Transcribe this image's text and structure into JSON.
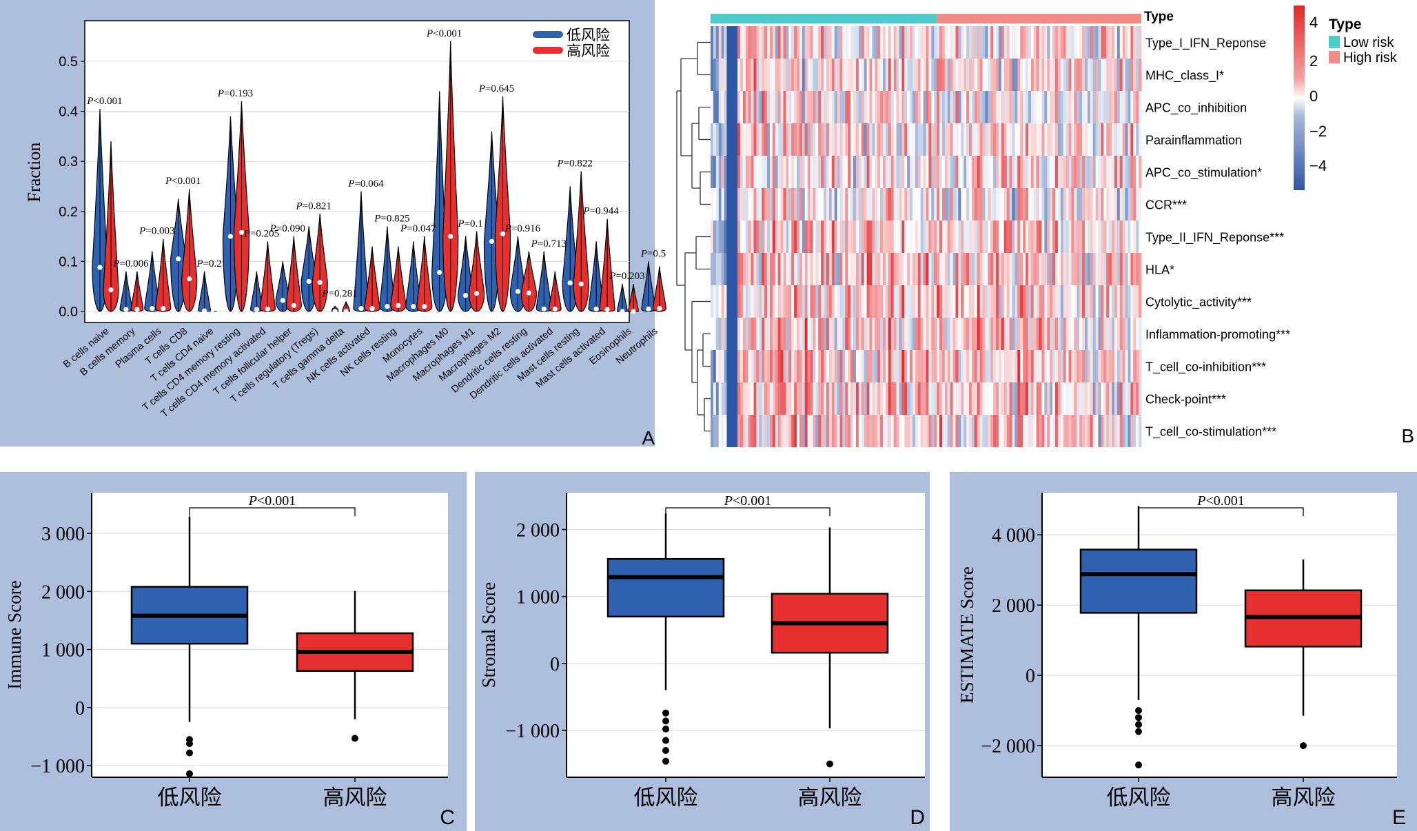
{
  "colors": {
    "panel_bg": "#aebedd",
    "low_risk": "#2e62b1",
    "high_risk": "#e63030",
    "heat_high": "#e2262b",
    "heat_low": "#2d56a6",
    "low_risk_bar": "#4ec9cc",
    "high_risk_bar": "#f28c86",
    "grid": "#d8d8d8"
  },
  "panels": {
    "A": "A",
    "B": "B",
    "C": "C",
    "D": "D",
    "E": "E"
  },
  "chart_data": [
    {
      "panel": "A",
      "type": "violin",
      "ylabel": "Fraction",
      "ylim": [
        0,
        0.58
      ],
      "yticks": [
        0.0,
        0.1,
        0.2,
        0.3,
        0.4,
        0.5
      ],
      "legend": {
        "position": "top-right",
        "entries": [
          "低风险",
          "高风险"
        ]
      },
      "categories": [
        "B cells naive",
        "B cells memory",
        "Plasma cells",
        "T cells CD8",
        "T cells CD4 naive",
        "T cells CD4 memory resting",
        "T cells CD4 memory activated",
        "T cells follicular helper",
        "T cells regulatory (Tregs)",
        "T cells gamma delta",
        "NK cells activated",
        "NK cells resting",
        "Monocytes",
        "Macrophages M0",
        "Macrophages M1",
        "Macrophages M2",
        "Dendritic cells resting",
        "Dendritic cells activated",
        "Mast cells resting",
        "Mast cells activated",
        "Eosinophils",
        "Neutrophils"
      ],
      "p_labels": [
        "<0.001",
        "=0.006",
        "=0.003",
        "<0.001",
        "=0.2",
        "=0.193",
        "=0.205",
        "=0.090",
        "=0.821",
        "=0.281",
        "=0.064",
        "=0.825",
        "=0.047",
        "<0.001",
        "=0.1",
        "=0.645",
        "=0.916",
        "=0.713",
        "=0.822",
        "=0.944",
        "=0.203",
        "=0.5"
      ],
      "p_prefix": "P",
      "series": [
        {
          "name": "低风险",
          "median": [
            0.088,
            0.004,
            0.006,
            0.105,
            0.001,
            0.15,
            0.004,
            0.022,
            0.06,
            0.0,
            0.006,
            0.01,
            0.01,
            0.078,
            0.032,
            0.14,
            0.04,
            0.005,
            0.057,
            0.005,
            0.0,
            0.005
          ],
          "max": [
            0.405,
            0.08,
            0.12,
            0.225,
            0.08,
            0.39,
            0.08,
            0.1,
            0.17,
            0.01,
            0.24,
            0.17,
            0.14,
            0.44,
            0.15,
            0.36,
            0.15,
            0.12,
            0.25,
            0.14,
            0.055,
            0.1
          ]
        },
        {
          "name": "高风险",
          "median": [
            0.043,
            0.004,
            0.006,
            0.065,
            0.0,
            0.158,
            0.005,
            0.012,
            0.058,
            0.0,
            0.006,
            0.012,
            0.01,
            0.15,
            0.036,
            0.155,
            0.037,
            0.005,
            0.055,
            0.004,
            0.0,
            0.006
          ],
          "max": [
            0.34,
            0.08,
            0.145,
            0.245,
            0.0,
            0.42,
            0.14,
            0.15,
            0.195,
            0.02,
            0.13,
            0.13,
            0.15,
            0.54,
            0.16,
            0.43,
            0.12,
            0.08,
            0.28,
            0.185,
            0.055,
            0.09
          ]
        }
      ]
    },
    {
      "panel": "B",
      "type": "heatmap",
      "type_label": "Type",
      "rows": [
        "Type_I_IFN_Reponse",
        "MHC_class_I*",
        "APC_co_inhibition",
        "Parainflammation",
        "APC_co_stimulation*",
        "CCR***",
        "Type_II_IFN_Reponse***",
        "HLA*",
        "Cytolytic_activity***",
        "Inflammation-promoting***",
        "T_cell_co-inhibition***",
        "Check-point***",
        "T_cell_co-stimulation***"
      ],
      "groups": [
        {
          "name": "Low risk",
          "fraction": 0.525
        },
        {
          "name": "High risk",
          "fraction": 0.475
        }
      ],
      "colorbar": {
        "range": [
          -5,
          5
        ],
        "ticks": [
          "4",
          "2",
          "0",
          "−2",
          "−4"
        ]
      },
      "legend_title": "Type"
    },
    {
      "panel": "C",
      "type": "box",
      "ylabel": "Immune Score",
      "categories": [
        "低风险",
        "高风险"
      ],
      "ylim": [
        -1200,
        3700
      ],
      "yticks": [
        -1000,
        0,
        1000,
        2000,
        3000
      ],
      "ytick_labels": [
        "−1 000",
        "0",
        "1 000",
        "2 000",
        "3 000"
      ],
      "p_label": "<0.001",
      "boxes": [
        {
          "min": -250,
          "q1": 1100,
          "median": 1580,
          "q3": 2080,
          "max": 3290,
          "outliers": [
            -550,
            -620,
            -780,
            -1140
          ]
        },
        {
          "min": -200,
          "q1": 630,
          "median": 960,
          "q3": 1280,
          "max": 2010,
          "outliers": [
            -530
          ]
        }
      ]
    },
    {
      "panel": "D",
      "type": "box",
      "ylabel": "Stromal Score",
      "categories": [
        "低风险",
        "高风险"
      ],
      "ylim": [
        -1700,
        2550
      ],
      "yticks": [
        -1000,
        0,
        1000,
        2000
      ],
      "ytick_labels": [
        "−1 000",
        "0",
        "1 000",
        "2 000"
      ],
      "p_label": "<0.001",
      "boxes": [
        {
          "min": -400,
          "q1": 700,
          "median": 1290,
          "q3": 1560,
          "max": 2240,
          "outliers": [
            -740,
            -860,
            -980,
            -1150,
            -1300,
            -1460
          ]
        },
        {
          "min": -970,
          "q1": 160,
          "median": 600,
          "q3": 1040,
          "max": 2030,
          "outliers": [
            -1500
          ]
        }
      ]
    },
    {
      "panel": "E",
      "type": "box",
      "ylabel": "ESTIMATE Score",
      "categories": [
        "低风险",
        "高风险"
      ],
      "ylim": [
        -2900,
        5200
      ],
      "yticks": [
        -2000,
        0,
        2000,
        4000
      ],
      "ytick_labels": [
        "−2 000",
        "0",
        "2 000",
        "4 000"
      ],
      "p_label": "<0.001",
      "boxes": [
        {
          "min": -700,
          "q1": 1780,
          "median": 2880,
          "q3": 3580,
          "max": 4820,
          "outliers": [
            -1000,
            -1200,
            -1400,
            -1600,
            -2550
          ]
        },
        {
          "min": -1150,
          "q1": 820,
          "median": 1660,
          "q3": 2420,
          "max": 3300,
          "outliers": [
            -2000
          ]
        }
      ]
    }
  ]
}
